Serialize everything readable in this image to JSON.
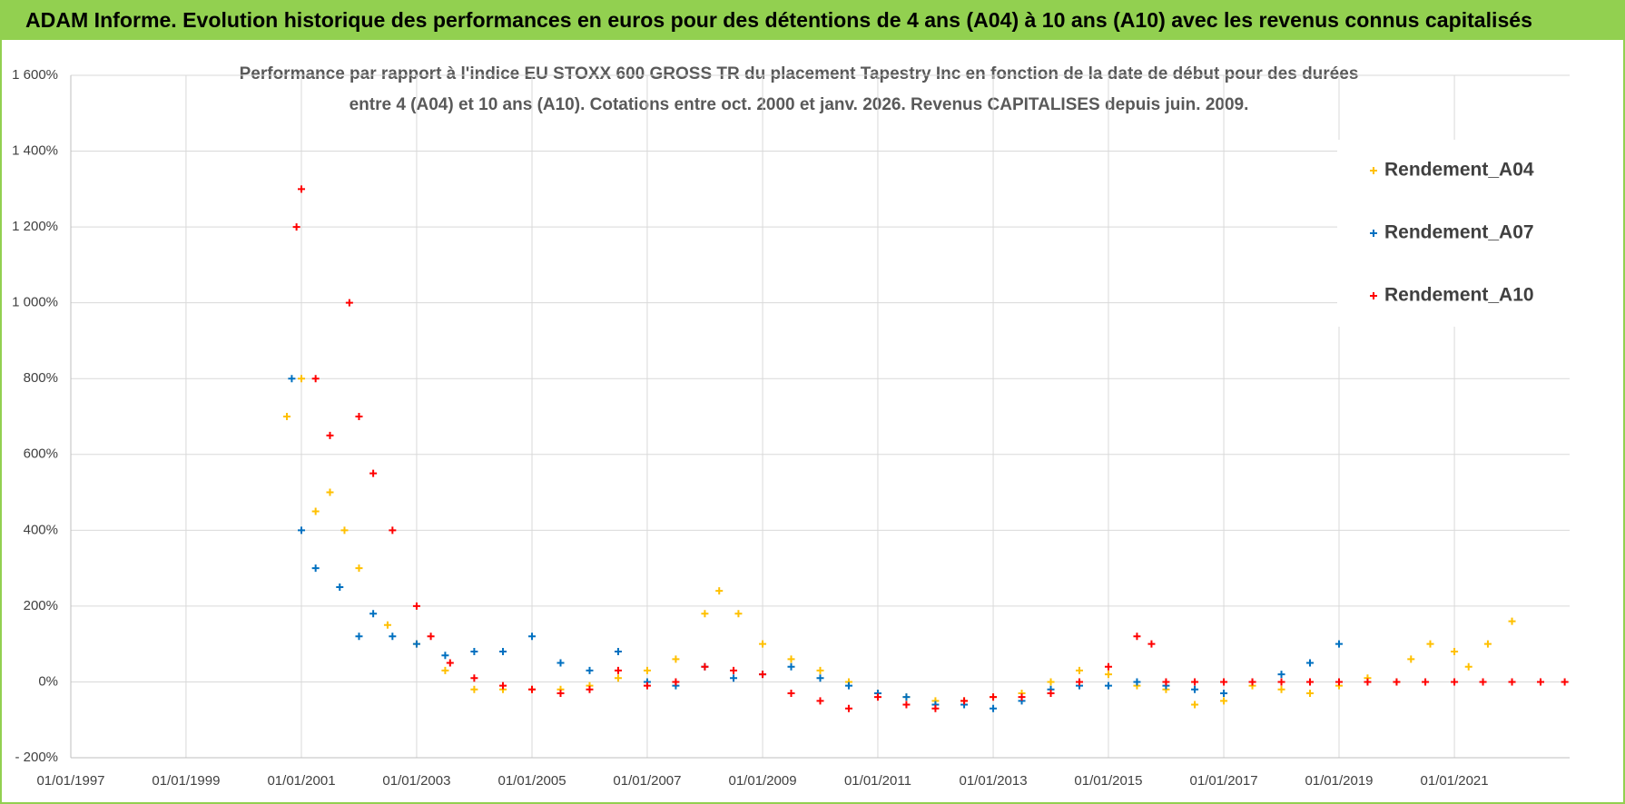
{
  "chart_data": {
    "type": "scatter",
    "title": "ADAM Informe. Evolution historique des performances en euros pour des détentions de 4 ans (A04) à 10 ans (A10) avec les revenus connus capitalisés",
    "subtitle": [
      "Performance par rapport à l'indice EU STOXX 600 GROSS TR  du placement Tapestry Inc en fonction de la date de début pour des durées",
      "entre 4 (A04) et 10 ans (A10).  Cotations entre oct. 2000 et janv. 2026.  Revenus CAPITALISES  depuis juin. 2009."
    ],
    "xlim": [
      "01/01/1997",
      "01/01/2023"
    ],
    "xticks": [
      "01/01/1997",
      "01/01/1999",
      "01/01/2001",
      "01/01/2003",
      "01/01/2005",
      "01/01/2007",
      "01/01/2009",
      "01/01/2011",
      "01/01/2013",
      "01/01/2015",
      "01/01/2017",
      "01/01/2019",
      "01/01/2021"
    ],
    "ylim": [
      -200,
      1600
    ],
    "yticks": [
      {
        "value": -200,
        "label": "- 200%"
      },
      {
        "value": 0,
        "label": "0%"
      },
      {
        "value": 200,
        "label": "200%"
      },
      {
        "value": 400,
        "label": "400%"
      },
      {
        "value": 600,
        "label": "600%"
      },
      {
        "value": 800,
        "label": "800%"
      },
      {
        "value": 1000,
        "label": "1 000%"
      },
      {
        "value": 1200,
        "label": "1 200%"
      },
      {
        "value": 1400,
        "label": "1 400%"
      },
      {
        "value": 1600,
        "label": "1 600%"
      }
    ],
    "grid": true,
    "legend": "upper right",
    "series": [
      {
        "name": "Rendement_A04",
        "color": "#FFC000",
        "x": [
          "01/10/2000",
          "01/01/2001",
          "01/04/2001",
          "01/07/2001",
          "01/10/2001",
          "01/01/2002",
          "01/07/2002",
          "01/01/2003",
          "01/07/2003",
          "01/01/2004",
          "01/07/2004",
          "01/01/2005",
          "01/07/2005",
          "01/01/2006",
          "01/07/2006",
          "01/01/2007",
          "01/07/2007",
          "01/01/2008",
          "01/04/2008",
          "01/08/2008",
          "01/01/2009",
          "01/07/2009",
          "01/01/2010",
          "01/07/2010",
          "01/01/2011",
          "01/07/2011",
          "01/01/2012",
          "01/07/2012",
          "01/01/2013",
          "01/07/2013",
          "01/01/2014",
          "01/07/2014",
          "01/01/2015",
          "01/07/2015",
          "01/01/2016",
          "01/07/2016",
          "01/01/2017",
          "01/07/2017",
          "01/01/2018",
          "01/07/2018",
          "01/01/2019",
          "01/07/2019",
          "01/01/2020",
          "01/04/2020",
          "01/08/2020",
          "01/01/2021",
          "01/04/2021",
          "01/08/2021",
          "01/01/2022"
        ],
        "values": [
          700,
          800,
          450,
          500,
          400,
          300,
          150,
          100,
          30,
          -20,
          -20,
          -20,
          -20,
          -10,
          10,
          30,
          60,
          180,
          240,
          180,
          100,
          60,
          30,
          0,
          -30,
          -40,
          -50,
          -50,
          -40,
          -30,
          0,
          30,
          20,
          -10,
          -20,
          -60,
          -50,
          -10,
          -20,
          -30,
          -10,
          10,
          0,
          60,
          100,
          80,
          40,
          100,
          160
        ]
      },
      {
        "name": "Rendement_A07",
        "color": "#0070C0",
        "x": [
          "01/11/2000",
          "01/01/2001",
          "01/04/2001",
          "01/09/2001",
          "01/01/2002",
          "01/04/2002",
          "01/08/2002",
          "01/01/2003",
          "01/07/2003",
          "01/01/2004",
          "01/07/2004",
          "01/01/2005",
          "01/07/2005",
          "01/01/2006",
          "01/07/2006",
          "01/01/2007",
          "01/07/2007",
          "01/01/2008",
          "01/07/2008",
          "01/01/2009",
          "01/07/2009",
          "01/01/2010",
          "01/07/2010",
          "01/01/2011",
          "01/07/2011",
          "01/01/2012",
          "01/07/2012",
          "01/01/2013",
          "01/07/2013",
          "01/01/2014",
          "01/07/2014",
          "01/01/2015",
          "01/07/2015",
          "01/01/2016",
          "01/07/2016",
          "01/01/2017",
          "01/07/2017",
          "01/01/2018",
          "01/07/2018",
          "01/01/2019"
        ],
        "values": [
          800,
          400,
          300,
          250,
          120,
          180,
          120,
          100,
          70,
          80,
          80,
          120,
          50,
          30,
          80,
          0,
          -10,
          40,
          10,
          20,
          40,
          10,
          -10,
          -30,
          -40,
          -60,
          -60,
          -70,
          -50,
          -20,
          -10,
          -10,
          0,
          -10,
          -20,
          -30,
          0,
          20,
          50,
          100
        ]
      },
      {
        "name": "Rendement_A10",
        "color": "#FF0000",
        "x": [
          "01/12/2000",
          "01/01/2001",
          "01/04/2001",
          "01/07/2001",
          "01/11/2001",
          "01/01/2002",
          "01/04/2002",
          "01/08/2002",
          "01/01/2003",
          "01/04/2003",
          "01/08/2003",
          "01/01/2004",
          "01/07/2004",
          "01/01/2005",
          "01/07/2005",
          "01/01/2006",
          "01/07/2006",
          "01/01/2007",
          "01/07/2007",
          "01/01/2008",
          "01/07/2008",
          "01/01/2009",
          "01/07/2009",
          "01/01/2010",
          "01/07/2010",
          "01/01/2011",
          "01/07/2011",
          "01/01/2012",
          "01/07/2012",
          "01/01/2013",
          "01/07/2013",
          "01/01/2014",
          "01/07/2014",
          "01/01/2015",
          "01/07/2015",
          "01/10/2015",
          "01/01/2016",
          "01/07/2016",
          "01/01/2017",
          "01/07/2017",
          "01/01/2018",
          "01/07/2018",
          "01/01/2019",
          "01/07/2019",
          "01/01/2020",
          "01/07/2020",
          "01/01/2021",
          "01/07/2021",
          "01/01/2022",
          "01/07/2022",
          "01/12/2022"
        ],
        "values": [
          1200,
          1300,
          800,
          650,
          1000,
          700,
          550,
          400,
          200,
          120,
          50,
          10,
          -10,
          -20,
          -30,
          -20,
          30,
          -10,
          0,
          40,
          30,
          20,
          -30,
          -50,
          -70,
          -40,
          -60,
          -70,
          -50,
          -40,
          -40,
          -30,
          0,
          40,
          120,
          100,
          0,
          0,
          0,
          0,
          0,
          0,
          0,
          0,
          0,
          0,
          0,
          0,
          0,
          0,
          0
        ]
      }
    ]
  }
}
